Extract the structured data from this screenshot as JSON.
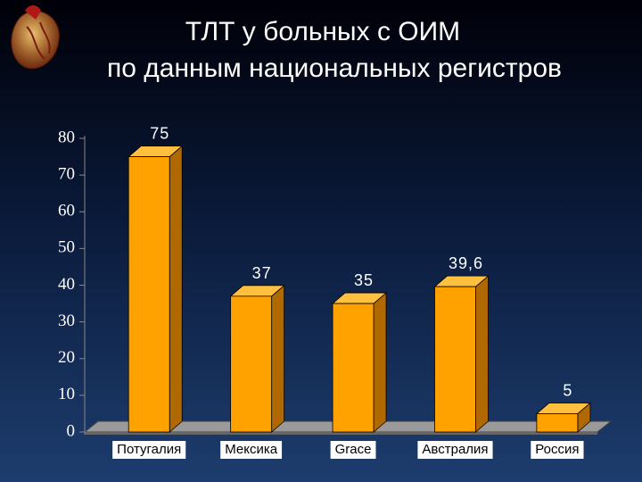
{
  "chart_data": {
    "type": "bar3d",
    "title": "ТЛТ у больных с ОИМ",
    "subtitle": "по данным национальных регистров",
    "categories": [
      "Потугалия",
      "Мексика",
      "Grace",
      "Австралия",
      "Россия"
    ],
    "values": [
      75,
      37,
      35,
      39.6,
      5
    ],
    "value_labels": [
      "75",
      "37",
      "35",
      "39,6",
      "5"
    ],
    "color": "#ffa200",
    "ylim": [
      0,
      80
    ],
    "yticks": [
      0,
      10,
      20,
      30,
      40,
      50,
      60,
      70,
      80
    ],
    "grid": false
  }
}
